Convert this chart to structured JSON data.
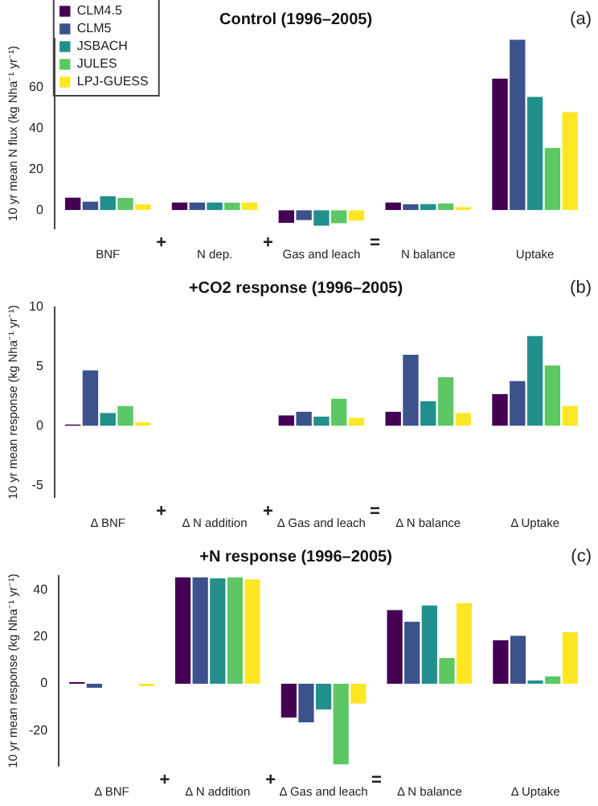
{
  "chart_data": [
    {
      "type": "bar",
      "title": "Control (1996–2005)",
      "ylabel": "10 yr mean N flux (kg Nha⁻¹ yr⁻¹)",
      "categories": [
        "BNF",
        "N dep.",
        "Gas and leach",
        "N balance",
        "Uptake"
      ],
      "series": [
        {
          "name": "CLM4.5",
          "color": "#440154",
          "values": [
            6.2,
            3.8,
            -6.3,
            3.8,
            64.5
          ]
        },
        {
          "name": "CLM5",
          "color": "#3b528b",
          "values": [
            4.2,
            3.8,
            -5,
            2.8,
            83.5
          ]
        },
        {
          "name": "JSBACH",
          "color": "#21908c",
          "values": [
            6.8,
            3.8,
            -7.7,
            3,
            55.5
          ]
        },
        {
          "name": "JULES",
          "color": "#5dc863",
          "values": [
            6,
            3.6,
            -6.5,
            3.3,
            30.5
          ]
        },
        {
          "name": "LPJ-GUESS",
          "color": "#fde725",
          "values": [
            2.8,
            3.8,
            -5.3,
            1.5,
            48
          ]
        }
      ],
      "ylim": [
        -9,
        84
      ],
      "yticks": [
        0,
        20,
        40,
        60
      ],
      "grid": false,
      "legend": "top left",
      "annotations": [
        "+",
        "+",
        "=",
        "(a)"
      ]
    },
    {
      "type": "bar",
      "title": "+CO2 response (1996–2005)",
      "ylabel": "10 yr mean response (kg Nha⁻¹ yr⁻¹)",
      "categories": [
        "Δ BNF",
        "Δ N addition",
        "Δ Gas and leach",
        "Δ N balance",
        "Δ Uptake"
      ],
      "series": [
        {
          "color": "#440154",
          "values": [
            0.1,
            null,
            0.9,
            1.2,
            2.7
          ]
        },
        {
          "color": "#3b528b",
          "values": [
            4.7,
            null,
            1.2,
            6,
            3.8
          ]
        },
        {
          "color": "#21908c",
          "values": [
            1.1,
            null,
            0.8,
            2.1,
            7.6
          ]
        },
        {
          "color": "#5dc863",
          "values": [
            1.7,
            null,
            2.3,
            4.1,
            5.1
          ]
        },
        {
          "color": "#fde725",
          "values": [
            0.3,
            null,
            0.7,
            1.1,
            1.7
          ]
        }
      ],
      "ylim": [
        -6,
        10
      ],
      "yticks": [
        -5,
        0,
        5,
        10
      ],
      "grid": false,
      "legend": false,
      "annotations": [
        "+",
        "+",
        "=",
        "(b)"
      ]
    },
    {
      "type": "bar",
      "title": "+N response (1996–2005)",
      "ylabel": "10 yr mean response (kg Nha⁻¹ yr⁻¹)",
      "categories": [
        "Δ BNF",
        "Δ N addition",
        "Δ Gas and leach",
        "Δ N balance",
        "Δ Uptake"
      ],
      "series": [
        {
          "color": "#440154",
          "values": [
            0.2,
            45.5,
            -14.5,
            31.5,
            18.5
          ]
        },
        {
          "color": "#3b528b",
          "values": [
            -1.8,
            45.5,
            -16.5,
            26.5,
            20.5
          ]
        },
        {
          "color": "#21908c",
          "values": [
            null,
            45,
            -11,
            33.5,
            1.5
          ]
        },
        {
          "color": "#5dc863",
          "values": [
            null,
            45.5,
            -34.5,
            11,
            3.2
          ]
        },
        {
          "color": "#fde725",
          "values": [
            -1,
            44.5,
            -8.5,
            34.5,
            22
          ]
        }
      ],
      "ylim": [
        -35,
        46
      ],
      "yticks": [
        -20,
        0,
        20,
        40
      ],
      "grid": false,
      "legend": false,
      "annotations": [
        "+",
        "+",
        "=",
        "(c)"
      ]
    }
  ]
}
